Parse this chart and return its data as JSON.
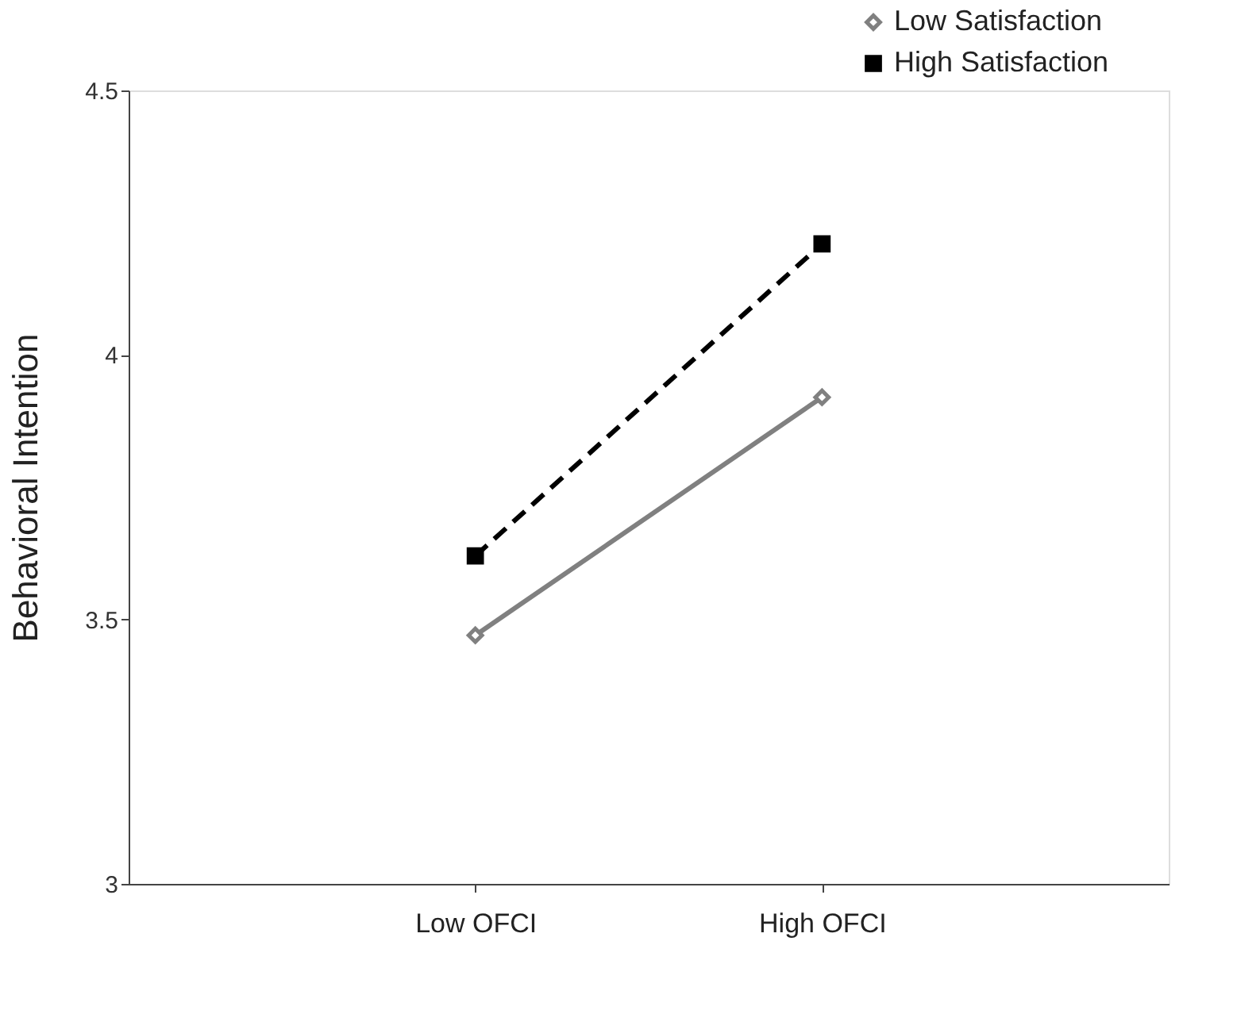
{
  "chart_data": {
    "type": "line",
    "ylabel": "Behavioral Intention",
    "categories": [
      "Low OFCI",
      "High OFCI"
    ],
    "series": [
      {
        "name": "Low Satisfaction",
        "color": "#808080",
        "values": [
          3.47,
          3.92
        ],
        "marker": "diamond",
        "line_style": "solid"
      },
      {
        "name": "High Satisfaction",
        "color": "#000000",
        "values": [
          3.62,
          4.21
        ],
        "marker": "square",
        "line_style": "dashed"
      }
    ],
    "ylim": [
      3,
      4.5
    ],
    "yticks": [
      3,
      3.5,
      4,
      4.5
    ],
    "grid": false,
    "legend": "top right"
  }
}
